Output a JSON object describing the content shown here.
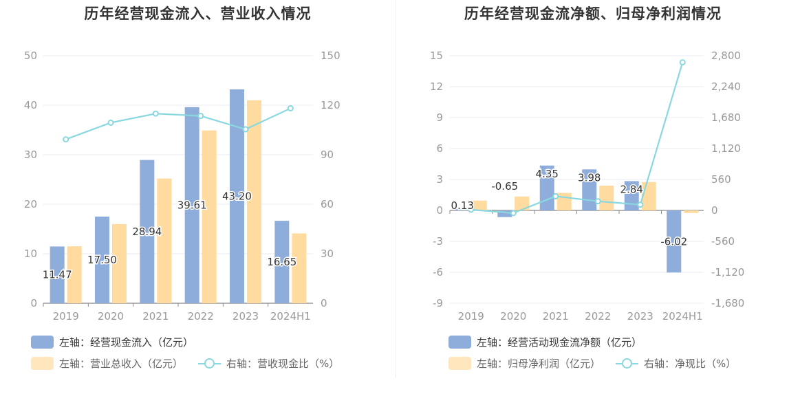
{
  "colors": {
    "bar1": "#8eaddb",
    "bar2": "#ffdb9f",
    "line": "#89d8df",
    "axis": "#999999",
    "grid": "#e8ebf3"
  },
  "chart_data": [
    {
      "type": "bar",
      "title": "历年经营现金流入、营业收入情况",
      "categories": [
        "2019",
        "2020",
        "2021",
        "2022",
        "2023",
        "2024H1"
      ],
      "y_left": {
        "min": 0,
        "max": 50,
        "ticks": [
          "0",
          "10",
          "20",
          "30",
          "40",
          "50"
        ]
      },
      "y_right": {
        "min": 0,
        "max": 150,
        "ticks": [
          "0",
          "30",
          "60",
          "90",
          "120",
          "150"
        ]
      },
      "series": [
        {
          "name": "左轴：经营现金流入（亿元）",
          "type": "bar",
          "axis": "left",
          "values": [
            11.47,
            17.5,
            28.94,
            39.61,
            43.2,
            16.65
          ],
          "labels": [
            "11.47",
            "17.50",
            "28.94",
            "39.61",
            "43.20",
            "16.65"
          ]
        },
        {
          "name": "左轴：营业总收入（亿元）",
          "type": "bar",
          "axis": "left",
          "values": [
            11.5,
            16.0,
            25.2,
            34.9,
            41.0,
            14.1
          ]
        },
        {
          "name": "右轴：营收现金比（%）",
          "type": "line",
          "axis": "right",
          "values": [
            99.3,
            109.4,
            114.9,
            113.5,
            105.4,
            118.1
          ]
        }
      ]
    },
    {
      "type": "bar",
      "title": "历年经营现金流净额、归母净利润情况",
      "categories": [
        "2019",
        "2020",
        "2021",
        "2022",
        "2023",
        "2024H1"
      ],
      "y_left": {
        "min": -9,
        "max": 15,
        "ticks": [
          "-9",
          "-6",
          "-3",
          "0",
          "3",
          "6",
          "9",
          "12",
          "15"
        ]
      },
      "y_right": {
        "min": -1680,
        "max": 2800,
        "ticks": [
          "-1,680",
          "-1,120",
          "-560",
          "0",
          "560",
          "1,120",
          "1,680",
          "2,240",
          "2,800"
        ]
      },
      "series": [
        {
          "name": "左轴：经营活动现金流净额（亿元）",
          "type": "bar",
          "axis": "left",
          "values": [
            0.13,
            -0.65,
            4.35,
            3.98,
            2.84,
            -6.02
          ],
          "labels": [
            "0.13",
            "-0.65",
            "4.35",
            "3.98",
            "2.84",
            "-6.02"
          ]
        },
        {
          "name": "左轴：归母净利润（亿元）",
          "type": "bar",
          "axis": "left",
          "values": [
            0.95,
            1.35,
            1.7,
            2.4,
            2.75,
            -0.25
          ]
        },
        {
          "name": "右轴：净现比（%）",
          "type": "line",
          "axis": "right",
          "values": [
            13,
            -48,
            256,
            166,
            103,
            2680
          ]
        }
      ]
    }
  ]
}
